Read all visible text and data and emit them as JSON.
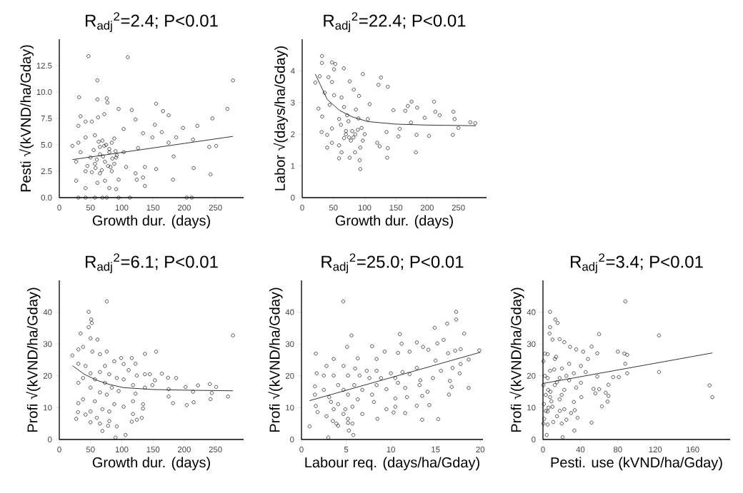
{
  "chart_data": [
    {
      "type": "scatter",
      "title": "R$_{adj}$$^{2}$=2.4; P<0.01",
      "xlabel": "Growth dur. (days)",
      "ylabel": "Pesti √(kVND/ha/Gday)",
      "xlim": [
        0,
        295
      ],
      "ylim": [
        0,
        15
      ],
      "xticks": [
        0,
        50,
        100,
        150,
        200,
        250
      ],
      "yticks": [
        {
          "value": 0,
          "label": "0.0"
        },
        2.5,
        {
          "value": 5,
          "label": "5.0"
        },
        7.5,
        {
          "value": 10,
          "label": "10.0"
        },
        12.5
      ],
      "series": [
        {
          "marker": "circle",
          "color": "#000000",
          "x": [
            46.6,
            109.5,
            61,
            278,
            31.7,
            61,
            76,
            77,
            155,
            166,
            175,
            116,
            95,
            269,
            245,
            34,
            62,
            72,
            42,
            52,
            122,
            30.5,
            153,
            221,
            198,
            103,
            164,
            134,
            21,
            30.5,
            42,
            57,
            69,
            84,
            149,
            187,
            175,
            214,
            240,
            251,
            126,
            103,
            34,
            50,
            65,
            80,
            91,
            183,
            27,
            57,
            73,
            88,
            107,
            137,
            155,
            215,
            42,
            65,
            84,
            122,
            242,
            27,
            61,
            73,
            95,
            124,
            134,
            137,
            182,
            42,
            80,
            91,
            30.5,
            42,
            57,
            69,
            76,
            95,
            113,
            204,
            212,
            55,
            60,
            65,
            70,
            75,
            80,
            85,
            90,
            58,
            68,
            78,
            88,
            45,
            52,
            63,
            72,
            82,
            92
          ],
          "values": [
            13.4,
            13.3,
            11.1,
            11.1,
            9.5,
            9.3,
            9.4,
            9.0,
            8.9,
            8.2,
            7.8,
            8.3,
            8.4,
            8.4,
            7.5,
            7.7,
            7.6,
            7.9,
            7.2,
            7.2,
            7.4,
            6.8,
            6.9,
            6.8,
            6.6,
            6.5,
            6.2,
            6.1,
            4.9,
            5.2,
            5.7,
            5.9,
            5.4,
            5.2,
            5.7,
            5.7,
            5.2,
            5.5,
            4.8,
            4.9,
            4.7,
            4.3,
            4.3,
            3.8,
            4.1,
            4.3,
            3.8,
            3.9,
            3.4,
            3.2,
            3.4,
            3.2,
            2.9,
            2.9,
            2.7,
            2.8,
            2.5,
            2.3,
            2.5,
            2.3,
            2.2,
            1.6,
            1.4,
            1.6,
            1.7,
            1.7,
            1.9,
            1.1,
            1.7,
            0.9,
            0.9,
            0.8,
            0,
            0,
            0,
            0,
            0,
            0,
            0,
            0,
            0,
            4.5,
            3.6,
            4.8,
            3.9,
            5.0,
            4.6,
            3.7,
            4.4,
            2.8,
            2.6,
            3.0,
            5.6,
            3.0,
            2.4,
            5.3,
            4.9,
            2.9,
            4.0
          ]
        },
        {
          "type": "line",
          "marker": "none",
          "color": "#000000",
          "x": [
            21,
            278
          ],
          "values": [
            3.6,
            5.8
          ]
        }
      ]
    },
    {
      "type": "scatter",
      "title": "R$_{adj}$$^{2}$=22.4; P<0.01",
      "xlabel": "Growth dur. (days)",
      "ylabel": "Labor √(days/ha/Gday)",
      "xlim": [
        0,
        295
      ],
      "ylim": [
        0,
        5
      ],
      "xticks": [
        0,
        50,
        100,
        150,
        200,
        250
      ],
      "yticks": [
        0,
        1,
        2,
        3,
        4
      ],
      "series": [
        {
          "marker": "circle",
          "color": "#000000",
          "x": [
            31.6,
            31.6,
            47.6,
            53,
            51,
            66.6,
            21,
            28,
            42,
            47.6,
            97,
            126,
            122,
            137,
            76,
            82.6,
            36,
            51,
            63,
            91,
            108,
            175,
            211,
            44,
            67,
            86,
            169,
            184,
            165,
            146,
            213,
            220,
            242,
            26,
            32,
            196,
            244,
            59,
            74,
            105,
            174,
            269,
            277,
            250,
            156,
            47.6,
            70,
            89,
            31,
            40,
            135,
            183,
            203,
            241,
            154,
            67,
            78,
            97,
            120,
            47.6,
            40,
            59,
            124,
            137,
            93,
            63,
            84.5,
            182,
            59,
            76,
            136,
            92,
            93,
            62,
            70,
            75,
            80,
            85,
            90,
            95,
            100,
            72,
            82
          ],
          "values": [
            4.47,
            4.25,
            4.27,
            4.22,
            4.05,
            4.08,
            3.63,
            3.83,
            3.8,
            3.65,
            3.9,
            3.79,
            3.56,
            3.5,
            3.67,
            3.41,
            3.31,
            3.23,
            3.16,
            3.21,
            2.95,
            3.03,
            3.03,
            2.93,
            2.86,
            2.78,
            2.89,
            2.84,
            2.74,
            2.76,
            2.71,
            2.6,
            2.71,
            2.81,
            2.56,
            2.52,
            2.48,
            2.48,
            2.41,
            2.48,
            2.37,
            2.38,
            2.35,
            2.2,
            2.17,
            2.18,
            2.1,
            2.14,
            2.07,
            1.98,
            2.07,
            1.98,
            1.95,
            1.98,
            1.93,
            1.88,
            1.8,
            1.8,
            1.73,
            1.73,
            1.58,
            1.65,
            1.62,
            1.56,
            1.58,
            1.43,
            1.43,
            1.43,
            1.24,
            1.26,
            1.26,
            1.18,
            0.9,
            2.3,
            2.0,
            1.9,
            2.1,
            2.0,
            2.5,
            2.2,
            2.0,
            2.6,
            1.9
          ]
        },
        {
          "type": "line",
          "marker": "none",
          "color": "#000000",
          "x": [
            21,
            40,
            60,
            80,
            105,
            150,
            200,
            278
          ],
          "values": [
            3.9,
            3.1,
            2.75,
            2.55,
            2.4,
            2.32,
            2.29,
            2.27
          ]
        }
      ]
    },
    {
      "type": "scatter",
      "title": "R$_{adj}$$^{2}$=6.1; P<0.01",
      "xlabel": "Growth dur. (days)",
      "ylabel": "Profi √(kVND/ha/Gday)",
      "xlim": [
        0,
        295
      ],
      "ylim": [
        0,
        50
      ],
      "xticks": [
        0,
        50,
        100,
        150,
        200,
        250
      ],
      "yticks": [
        0,
        10,
        20,
        30,
        40
      ],
      "series": [
        {
          "marker": "circle",
          "color": "#000000",
          "x": [
            76,
            47,
            51,
            52,
            47,
            34,
            278,
            50,
            61,
            38,
            30.5,
            76,
            137,
            155,
            21,
            53,
            65,
            116,
            99,
            88,
            30.5,
            42,
            122,
            103,
            73,
            111,
            50,
            65,
            80,
            137,
            145,
            164,
            124,
            38,
            57,
            92,
            103,
            174,
            187,
            153,
            30.5,
            73,
            202,
            222,
            241,
            251,
            149,
            118,
            50,
            84,
            137,
            175,
            214,
            244,
            65,
            95,
            122,
            76,
            175,
            270,
            242,
            38,
            57,
            118,
            30.5,
            182,
            215,
            204,
            88,
            134,
            69,
            134,
            50,
            30,
            80,
            103,
            118,
            42,
            60,
            132,
            27,
            124,
            80,
            50,
            65,
            116,
            92,
            78,
            69,
            106,
            90
          ],
          "values": [
            43.4,
            40.1,
            37.7,
            36.6,
            35.3,
            33.3,
            32.7,
            31.8,
            31.4,
            29.1,
            28.3,
            27.6,
            26.9,
            27.6,
            26.4,
            27.6,
            26.8,
            25.6,
            25.6,
            24.6,
            23.8,
            23.1,
            23.8,
            23.7,
            23.1,
            21.8,
            20.8,
            21.2,
            20.5,
            20.5,
            20.5,
            20.7,
            20.1,
            19.3,
            18.9,
            19.3,
            18.9,
            19.4,
            19.3,
            18.6,
            17.8,
            17.8,
            16.5,
            17,
            17.4,
            16.5,
            17.1,
            17.1,
            16.3,
            16.3,
            16.3,
            15.8,
            15,
            14.6,
            14.8,
            15.2,
            14.4,
            14.1,
            13.5,
            13.5,
            12.7,
            12.6,
            12,
            12,
            11.4,
            11.4,
            11.7,
            10.8,
            11.1,
            11.1,
            9.5,
            9.7,
            8.8,
            8.6,
            8.8,
            10.3,
            8,
            7.8,
            6.8,
            6.8,
            6.5,
            6.2,
            5.8,
            5.4,
            5,
            5.6,
            4.1,
            4.3,
            2.7,
            1.4,
            0.6
          ]
        },
        {
          "type": "line",
          "marker": "none",
          "color": "#000000",
          "x": [
            21,
            40,
            60,
            80,
            103,
            150,
            200,
            278
          ],
          "values": [
            23.2,
            20.5,
            18.6,
            17.3,
            16.3,
            15.7,
            15.5,
            15.3
          ]
        }
      ]
    },
    {
      "type": "scatter",
      "title": "R$_{adj}$$^{2}$=25.0; P<0.01",
      "xlabel": "Labour req. (days/ha/Gday)",
      "ylabel": "Profi √(kVND/ha/Gday)",
      "xlim": [
        0,
        20.3
      ],
      "ylim": [
        0,
        50
      ],
      "xticks": [
        0,
        5,
        10,
        15,
        20
      ],
      "yticks": [
        0,
        10,
        20,
        30,
        40
      ],
      "series": [
        {
          "marker": "circle",
          "color": "#000000",
          "x": [
            4.67,
            17.3,
            17.3,
            16.3,
            14.9,
            5.6,
            11,
            18.2,
            11.2,
            12.9,
            15.2,
            15.9,
            5.1,
            13.6,
            14.2,
            1.6,
            7.9,
            9.3,
            10.8,
            12.1,
            16.4,
            17.2,
            17.8,
            19.9,
            3.6,
            6.3,
            8.4,
            15,
            18.7,
            17.8,
            16.9,
            17.7,
            15.6,
            12.9,
            2.8,
            4.7,
            6,
            7.3,
            8.4,
            10,
            11.3,
            12.1,
            1.7,
            2.5,
            3.6,
            5.2,
            6.5,
            7.6,
            8.9,
            10.5,
            13.3,
            14.7,
            16.6,
            18.7,
            16.8,
            13.2,
            10.8,
            8.4,
            5.9,
            4.1,
            1.5,
            2.5,
            4.7,
            6.8,
            9.5,
            11.6,
            14.1,
            16.5,
            13.5,
            11.8,
            7.9,
            5.2,
            1.5,
            3.1,
            10.5,
            6.3,
            8.1,
            3.3,
            1.6,
            4.1,
            5.7,
            10.5,
            12.9,
            14.3,
            3.6,
            4.9,
            9.5,
            1.8,
            6.8,
            10.3,
            11.6,
            2.8,
            4.7,
            5.2,
            8.5,
            13.5,
            15.3,
            3.5,
            3.9,
            5.2,
            5.7,
            0.9,
            4.1,
            5.3,
            5.8,
            3
          ],
          "values": [
            43.4,
            40.1,
            37.7,
            36.4,
            35.1,
            32.7,
            33.1,
            33.3,
            30.1,
            30.5,
            30.2,
            31.3,
            29.1,
            29.1,
            28.2,
            27,
            29.3,
            27.6,
            27.2,
            27.6,
            27.1,
            27.9,
            28.4,
            28,
            25.3,
            25.5,
            25.3,
            24.8,
            25.1,
            23.7,
            22.5,
            20.8,
            21.6,
            22.5,
            23.1,
            23.1,
            22.3,
            21.6,
            21.6,
            20.8,
            21.2,
            20.5,
            20.8,
            20.1,
            20.1,
            20.1,
            20.1,
            19.3,
            19.3,
            19.3,
            18.6,
            19.3,
            18.4,
            16.2,
            16.5,
            17.1,
            17.8,
            17.1,
            17.1,
            17.1,
            16.7,
            15.6,
            15.6,
            15.6,
            15.8,
            16.2,
            15,
            14.1,
            13.7,
            13.3,
            14.1,
            14.1,
            14.1,
            13.3,
            12.9,
            12.6,
            11.8,
            11.8,
            10.5,
            11.1,
            10.3,
            10.3,
            10.6,
            10.8,
            9.5,
            9.5,
            9.5,
            8.6,
            8,
            8.5,
            8.3,
            7.3,
            8,
            6.5,
            6.5,
            6.2,
            6.4,
            5.8,
            5,
            5.2,
            5,
            4.1,
            4.3,
            2.8,
            1.4,
            0.6
          ]
        },
        {
          "type": "line",
          "marker": "none",
          "color": "#000000",
          "x": [
            0.9,
            20
          ],
          "values": [
            12.2,
            27.4
          ]
        }
      ]
    },
    {
      "type": "scatter",
      "title": "R$_{adj}$$^{2}$=3.4; P<0.01",
      "xlabel": "Pesti. use (kVND/ha/Gday)",
      "ylabel": "Profi √(kVND/ha/Gday)",
      "xlim": [
        0,
        200
      ],
      "ylim": [
        0,
        50
      ],
      "xticks": [
        0,
        40,
        80,
        120,
        160
      ],
      "yticks": [
        0,
        10,
        20,
        30,
        40
      ],
      "series": [
        {
          "marker": "circle",
          "color": "#000000",
          "x": [
            88,
            7.6,
            13.2,
            15.7,
            7.6,
            7.1,
            60,
            124,
            10.2,
            17.8,
            22.8,
            35.5,
            52,
            29,
            58,
            80,
            87,
            90,
            43,
            48,
            5,
            12.7,
            88,
            28,
            40.6,
            20.3,
            7.6,
            124,
            90,
            33,
            45.7,
            5,
            17.8,
            58,
            81,
            75,
            28,
            40.6,
            12.7,
            70,
            178,
            35.5,
            54,
            60,
            5.6,
            22.8,
            56,
            67,
            70,
            181,
            41,
            7.6,
            17.8,
            33,
            69,
            63,
            10.2,
            22.8,
            34,
            5,
            30,
            15,
            37,
            1.3,
            25,
            20,
            52,
            5,
            33.5,
            4,
            21,
            0.5,
            0.5,
            1,
            0.5,
            2,
            3,
            8,
            12,
            15,
            18,
            25,
            3,
            9,
            14,
            20,
            2,
            6,
            11
          ],
          "values": [
            43.4,
            40.1,
            37.7,
            36.6,
            35.3,
            33.3,
            33.1,
            32.7,
            31.4,
            31.5,
            30.6,
            28.3,
            29.2,
            29.1,
            27.1,
            27.6,
            27,
            26.6,
            27.6,
            25.3,
            26.8,
            25.3,
            23.8,
            23.8,
            23.1,
            22.3,
            21.6,
            21.2,
            20.8,
            20.8,
            21.2,
            19.3,
            19.3,
            19.8,
            19.6,
            19.6,
            18.6,
            17.8,
            17.1,
            17.2,
            17,
            16.3,
            15.9,
            15.8,
            15.6,
            15.6,
            14.5,
            14.7,
            13.7,
            13.3,
            13.3,
            13.3,
            12.6,
            11.8,
            11.9,
            10.4,
            10.3,
            9.5,
            9.2,
            8.8,
            8.3,
            7.3,
            6.8,
            6.5,
            6.2,
            5,
            5.3,
            4.7,
            2.8,
            1.4,
            0.7,
            17.1,
            24.6,
            11.1,
            5,
            20,
            14,
            15,
            22,
            18,
            9,
            20,
            9,
            12,
            26,
            14,
            27,
            10,
            5.5
          ]
        },
        {
          "type": "line",
          "marker": "none",
          "color": "#000000",
          "x": [
            0,
            181
          ],
          "values": [
            17.6,
            27.2
          ]
        }
      ]
    }
  ]
}
